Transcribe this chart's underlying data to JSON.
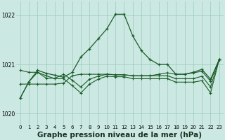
{
  "background_color": "#cce8e2",
  "grid_color": "#99ccbb",
  "line_color": "#1a5c28",
  "xlabel": "Graphe pression niveau de la mer (hPa)",
  "xlabel_fontsize": 7.5,
  "xlim": [
    -0.5,
    23.5
  ],
  "ylim": [
    1019.78,
    1022.28
  ],
  "yticks": [
    1020,
    1021,
    1022
  ],
  "ytick_labels": [
    "1020",
    "1021",
    "1022"
  ],
  "xtick_labels": [
    "0",
    "1",
    "2",
    "3",
    "4",
    "5",
    "6",
    "7",
    "8",
    "9",
    "10",
    "11",
    "12",
    "13",
    "14",
    "15",
    "16",
    "17",
    "18",
    "19",
    "20",
    "21",
    "22",
    "23"
  ],
  "series": [
    [
      1020.32,
      1020.65,
      1020.88,
      1020.82,
      1020.78,
      1020.74,
      1020.84,
      1021.15,
      1021.32,
      1021.52,
      1021.72,
      1022.02,
      1022.02,
      1021.58,
      1021.28,
      1021.1,
      1021.0,
      1021.0,
      1020.8,
      1020.8,
      1020.84,
      1020.9,
      1020.7,
      1021.1
    ],
    [
      1020.88,
      1020.84,
      1020.84,
      1020.72,
      1020.72,
      1020.8,
      1020.68,
      1020.54,
      1020.7,
      1020.76,
      1020.8,
      1020.79,
      1020.79,
      1020.77,
      1020.77,
      1020.77,
      1020.77,
      1020.77,
      1020.71,
      1020.71,
      1020.71,
      1020.76,
      1020.54,
      1021.1
    ],
    [
      1020.6,
      1020.6,
      1020.6,
      1020.6,
      1020.6,
      1020.62,
      1020.77,
      1020.8,
      1020.8,
      1020.8,
      1020.8,
      1020.79,
      1020.79,
      1020.77,
      1020.77,
      1020.77,
      1020.8,
      1020.83,
      1020.8,
      1020.8,
      1020.83,
      1020.86,
      1020.66,
      1021.1
    ],
    [
      1020.32,
      1020.65,
      1020.84,
      1020.77,
      1020.71,
      1020.71,
      1020.57,
      1020.42,
      1020.6,
      1020.7,
      1020.76,
      1020.75,
      1020.75,
      1020.71,
      1020.71,
      1020.71,
      1020.71,
      1020.71,
      1020.64,
      1020.64,
      1020.64,
      1020.67,
      1020.42,
      1021.1
    ]
  ]
}
